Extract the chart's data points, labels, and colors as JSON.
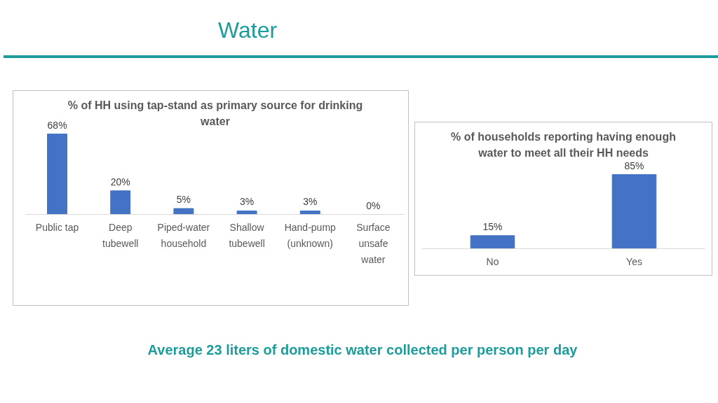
{
  "chart_data": [
    {
      "type": "other",
      "title": "Water",
      "annotations": [
        "Average 23 liters of domestic water collected per person per day"
      ]
    },
    {
      "type": "bar",
      "title": "% of HH using tap-stand as primary source for drinking water",
      "categories": [
        "Public tap",
        "Deep tubewell",
        "Piped-water household",
        "Shallow tubewell",
        "Hand-pump (unknown)",
        "Surface unsafe water"
      ],
      "values": [
        68,
        20,
        5,
        3,
        3,
        0
      ],
      "value_labels": [
        "68%",
        "20%",
        "5%",
        "3%",
        "3%",
        "0%"
      ],
      "color": "#4472c4"
    },
    {
      "type": "bar",
      "title": "% of households reporting having enough water to meet all their HH needs",
      "categories": [
        "No",
        "Yes"
      ],
      "values": [
        15,
        85
      ],
      "value_labels": [
        "15%",
        "85%"
      ],
      "color": "#4472c4"
    }
  ]
}
